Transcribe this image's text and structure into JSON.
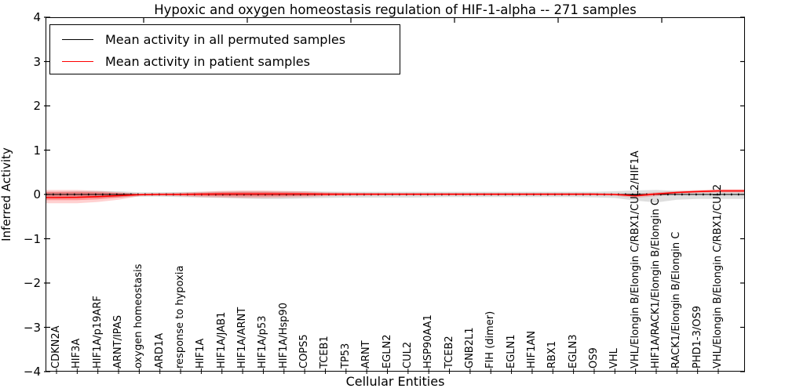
{
  "chart_data": {
    "type": "line",
    "title": "Hypoxic and oxygen homeostasis regulation of HIF-1-alpha -- 271 samples",
    "xlabel": "Cellular Entities",
    "ylabel": "Inferred Activity",
    "ylim": [
      -4,
      4
    ],
    "yticks": [
      4,
      3,
      2,
      1,
      0,
      -1,
      -2,
      -3,
      -4
    ],
    "grid": false,
    "legend_position": "upper left",
    "categories": [
      "CDKN2A",
      "HIF3A",
      "HIF1A/p19ARF",
      "ARNT/IPAS",
      "oxygen homeostasis",
      "ARD1A",
      "response to hypoxia",
      "HIF1A",
      "HIF1A/JAB1",
      "HIF1A/ARNT",
      "HIF1A/p53",
      "HIF1A/Hsp90",
      "COPS5",
      "TCEB1",
      "TP53",
      "ARNT",
      "EGLN2",
      "CUL2",
      "HSP90AA1",
      "TCEB2",
      "GNB2L1",
      "FIH (dimer)",
      "EGLN1",
      "HIF1AN",
      "RBX1",
      "EGLN3",
      "OS9",
      "VHL",
      "VHL/Elongin B/Elongin C/RBX1/CUL2/HIF1A",
      "HIF1A/RACK1/Elongin B/Elongin C",
      "RACK1/Elongin B/Elongin C",
      "PHD1-3/OS9",
      "VHL/Elongin B/Elongin C/RBX1/CUL2"
    ],
    "series": [
      {
        "name": "Mean activity in all permuted samples",
        "color": "#000000",
        "band_color": "#000000",
        "band_opacity": 0.13,
        "values": [
          0,
          0,
          0,
          0,
          0,
          0,
          0,
          0,
          0,
          0,
          0,
          0,
          0,
          0,
          0,
          0,
          0,
          0,
          0,
          0,
          0,
          0,
          0,
          0,
          0,
          0,
          0,
          0,
          0,
          0,
          0,
          0,
          0
        ],
        "band_hi": [
          0.06,
          0.07,
          0.08,
          0.07,
          0.05,
          0.05,
          0.055,
          0.06,
          0.065,
          0.07,
          0.07,
          0.07,
          0.07,
          0.065,
          0.06,
          0.06,
          0.06,
          0.06,
          0.06,
          0.06,
          0.06,
          0.06,
          0.06,
          0.06,
          0.06,
          0.06,
          0.06,
          0.07,
          0.09,
          0.1,
          0.08,
          0.08,
          0.09
        ],
        "band_lo": [
          -0.06,
          -0.07,
          -0.08,
          -0.07,
          -0.05,
          -0.05,
          -0.06,
          -0.07,
          -0.08,
          -0.09,
          -0.1,
          -0.1,
          -0.09,
          -0.08,
          -0.07,
          -0.07,
          -0.07,
          -0.07,
          -0.065,
          -0.06,
          -0.06,
          -0.06,
          -0.06,
          -0.06,
          -0.06,
          -0.06,
          -0.065,
          -0.08,
          -0.14,
          -0.18,
          -0.12,
          -0.1,
          -0.1
        ]
      },
      {
        "name": "Mean activity in patient samples",
        "color": "#ff0000",
        "band_color": "#ff0000",
        "band_opacity": 0.18,
        "inner_band_opacity": 0.28,
        "values": [
          -0.07,
          -0.065,
          -0.05,
          -0.025,
          -0.005,
          0,
          0,
          0.005,
          0.01,
          0.01,
          0.01,
          0.01,
          0.01,
          0.005,
          0.005,
          0.005,
          0.005,
          0.005,
          0.005,
          0.005,
          0.005,
          0.005,
          0.005,
          0.005,
          0.005,
          0.005,
          0.005,
          0,
          -0.03,
          0.01,
          0.045,
          0.065,
          0.08
        ],
        "band_hi": [
          0.1,
          0.1,
          0.08,
          0.05,
          0.02,
          0.03,
          0.04,
          0.06,
          0.08,
          0.09,
          0.09,
          0.08,
          0.07,
          0.05,
          0.04,
          0.035,
          0.03,
          0.03,
          0.03,
          0.03,
          0.03,
          0.03,
          0.03,
          0.03,
          0.03,
          0.03,
          0.03,
          0.02,
          0.02,
          0.05,
          0.08,
          0.1,
          0.12
        ],
        "band_lo": [
          -0.2,
          -0.2,
          -0.17,
          -0.12,
          -0.04,
          -0.03,
          -0.04,
          -0.06,
          -0.07,
          -0.08,
          -0.08,
          -0.07,
          -0.06,
          -0.04,
          -0.03,
          -0.025,
          -0.02,
          -0.02,
          -0.02,
          -0.02,
          -0.02,
          -0.02,
          -0.02,
          -0.02,
          -0.02,
          -0.02,
          -0.02,
          -0.03,
          -0.08,
          -0.04,
          0.01,
          0.03,
          0.04
        ],
        "inner_band_hi": [
          0.06,
          0.06,
          0.05,
          0.03,
          0.01,
          0.015,
          0.02,
          0.035,
          0.05,
          0.055,
          0.055,
          0.05,
          0.04,
          0.03,
          0.025,
          0.02,
          0.02,
          0.02,
          0.02,
          0.02,
          0.02,
          0.02,
          0.02,
          0.02,
          0.02,
          0.02,
          0.02,
          0.01,
          0.0,
          0.03,
          0.06,
          0.08,
          0.1
        ],
        "inner_band_lo": [
          -0.13,
          -0.13,
          -0.11,
          -0.07,
          -0.02,
          -0.015,
          -0.02,
          -0.03,
          -0.04,
          -0.045,
          -0.045,
          -0.04,
          -0.03,
          -0.02,
          -0.015,
          -0.01,
          -0.01,
          -0.01,
          -0.01,
          -0.01,
          -0.01,
          -0.01,
          -0.01,
          -0.01,
          -0.01,
          -0.01,
          -0.01,
          -0.015,
          -0.05,
          -0.01,
          0.03,
          0.05,
          0.06
        ]
      }
    ]
  }
}
